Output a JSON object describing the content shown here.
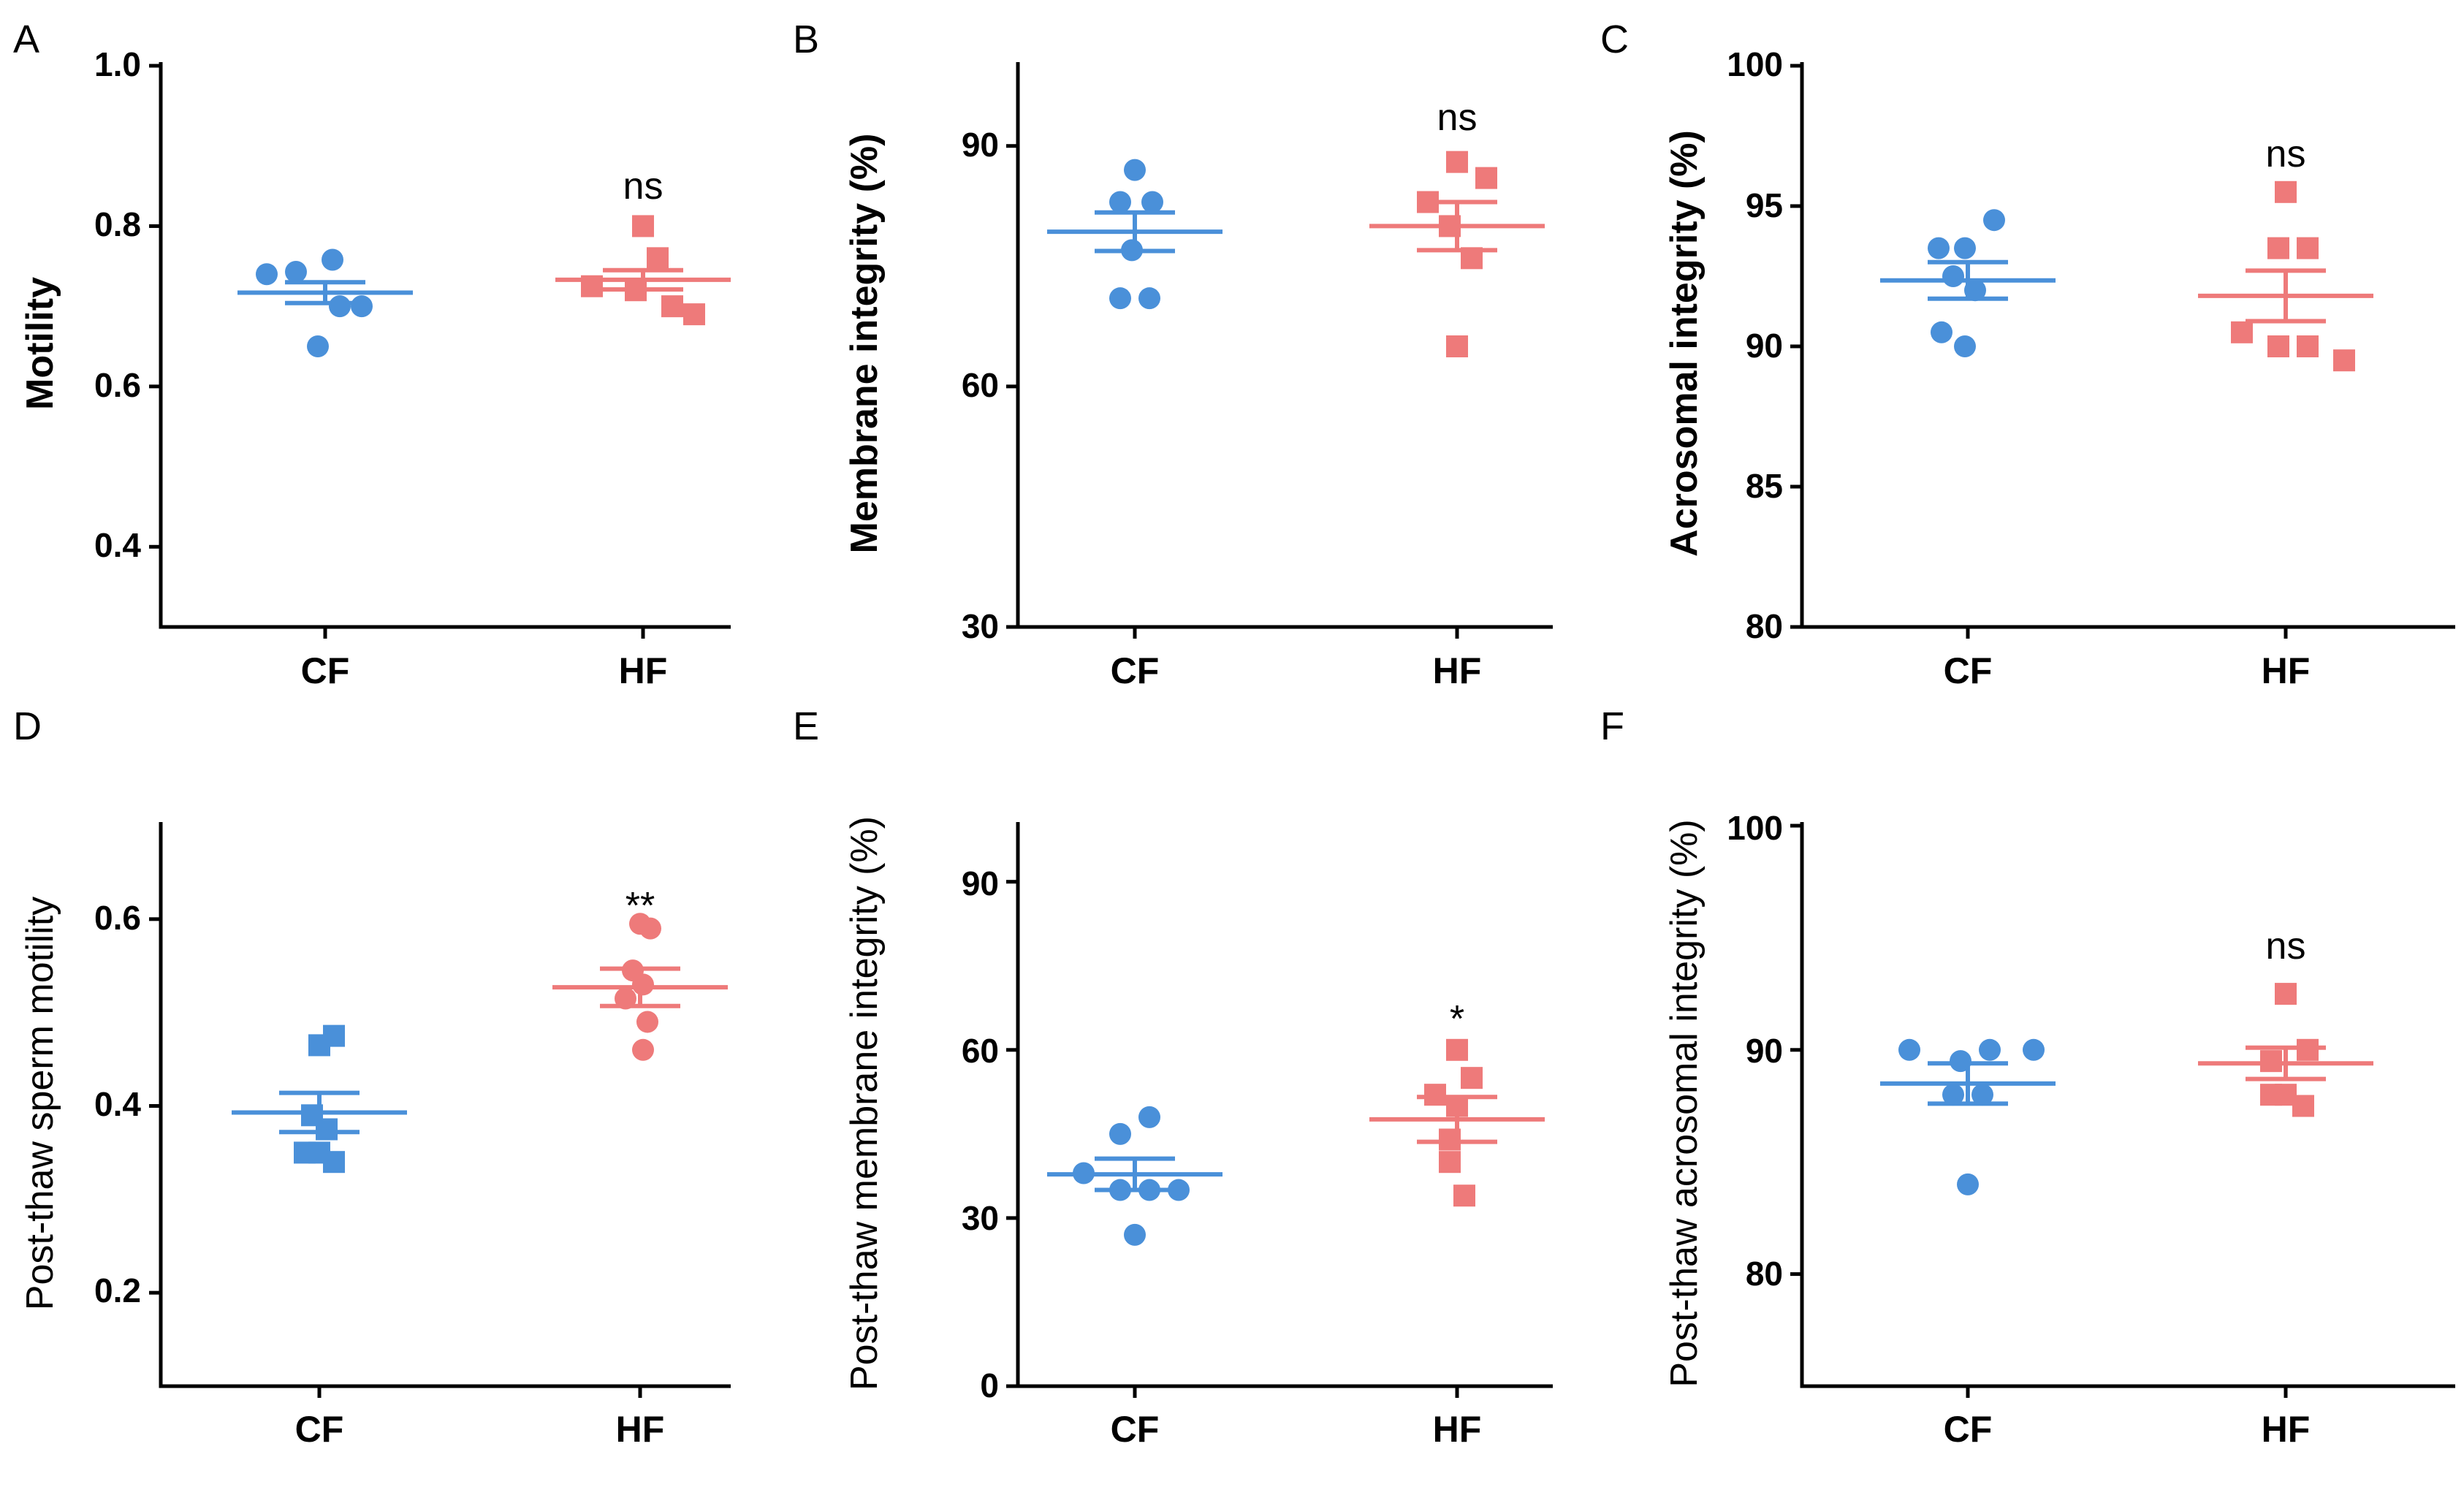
{
  "colors": {
    "CF": "#4a90d9",
    "HF": "#ee7a7a",
    "axis": "#000000"
  },
  "chart_data": [
    {
      "panel": "A",
      "type": "scatter",
      "ylabel": "Motility",
      "ylabel_weight": "bold",
      "categories": [
        "CF",
        "HF"
      ],
      "ylim": [
        0.3,
        1.0
      ],
      "yticks": [
        0.4,
        0.6,
        0.8,
        1.0
      ],
      "ytick_labels": [
        "0.4",
        "0.6",
        "0.8",
        "1.0"
      ],
      "significance": "ns",
      "series": [
        {
          "name": "CF",
          "marker": "circle",
          "mean": 0.717,
          "sem": 0.013,
          "points": [
            {
              "dx": -0.4,
              "y": 0.74
            },
            {
              "dx": -0.2,
              "y": 0.743
            },
            {
              "dx": 0.05,
              "y": 0.758
            },
            {
              "dx": 0.25,
              "y": 0.7
            },
            {
              "dx": -0.05,
              "y": 0.65
            },
            {
              "dx": 0.1,
              "y": 0.7
            }
          ]
        },
        {
          "name": "HF",
          "marker": "square",
          "mean": 0.733,
          "sem": 0.012,
          "points": [
            {
              "dx": -0.35,
              "y": 0.725
            },
            {
              "dx": -0.05,
              "y": 0.72
            },
            {
              "dx": 0.0,
              "y": 0.8
            },
            {
              "dx": 0.1,
              "y": 0.76
            },
            {
              "dx": 0.2,
              "y": 0.7
            },
            {
              "dx": 0.35,
              "y": 0.69
            }
          ]
        }
      ]
    },
    {
      "panel": "B",
      "type": "scatter",
      "ylabel": "Membrane integrity (%)",
      "ylabel_weight": "bold",
      "categories": [
        "CF",
        "HF"
      ],
      "ylim": [
        30,
        100
      ],
      "yticks": [
        30,
        60,
        90
      ],
      "ytick_labels": [
        "30",
        "60",
        "90"
      ],
      "significance": "ns",
      "series": [
        {
          "name": "CF",
          "marker": "circle",
          "mean": 79.3,
          "sem": 2.4,
          "points": [
            {
              "dx": 0.0,
              "y": 87
            },
            {
              "dx": -0.1,
              "y": 83
            },
            {
              "dx": 0.12,
              "y": 83
            },
            {
              "dx": -0.02,
              "y": 77
            },
            {
              "dx": -0.1,
              "y": 71
            },
            {
              "dx": 0.1,
              "y": 71
            }
          ]
        },
        {
          "name": "HF",
          "marker": "square",
          "mean": 80.0,
          "sem": 3.0,
          "points": [
            {
              "dx": 0.0,
              "y": 88
            },
            {
              "dx": 0.2,
              "y": 86
            },
            {
              "dx": -0.2,
              "y": 83
            },
            {
              "dx": -0.05,
              "y": 80
            },
            {
              "dx": 0.1,
              "y": 76
            },
            {
              "dx": 0.0,
              "y": 65
            }
          ]
        }
      ]
    },
    {
      "panel": "C",
      "type": "scatter",
      "ylabel": "Acrosomal integrity (%)",
      "ylabel_weight": "bold",
      "categories": [
        "CF",
        "HF"
      ],
      "ylim": [
        80,
        100
      ],
      "yticks": [
        80,
        85,
        90,
        95,
        100
      ],
      "ytick_labels": [
        "80",
        "85",
        "90",
        "95",
        "100"
      ],
      "significance": "ns",
      "series": [
        {
          "name": "CF",
          "marker": "circle",
          "mean": 92.35,
          "sem": 0.65,
          "points": [
            {
              "dx": -0.2,
              "y": 93.5
            },
            {
              "dx": -0.02,
              "y": 93.5
            },
            {
              "dx": 0.18,
              "y": 94.5
            },
            {
              "dx": 0.05,
              "y": 92.0
            },
            {
              "dx": -0.1,
              "y": 92.5
            },
            {
              "dx": -0.18,
              "y": 90.5
            },
            {
              "dx": -0.02,
              "y": 90.0
            }
          ]
        },
        {
          "name": "HF",
          "marker": "square",
          "mean": 91.8,
          "sem": 0.9,
          "points": [
            {
              "dx": 0.0,
              "y": 95.5
            },
            {
              "dx": -0.3,
              "y": 90.5
            },
            {
              "dx": -0.05,
              "y": 93.5
            },
            {
              "dx": 0.15,
              "y": 93.5
            },
            {
              "dx": -0.05,
              "y": 90.0
            },
            {
              "dx": 0.15,
              "y": 90.0
            },
            {
              "dx": 0.4,
              "y": 89.5
            }
          ]
        }
      ]
    },
    {
      "panel": "D",
      "type": "scatter",
      "ylabel": "Post-thaw sperm motility",
      "ylabel_weight": "normal",
      "categories": [
        "CF",
        "HF"
      ],
      "ylim": [
        0.1,
        0.7
      ],
      "yticks": [
        0.2,
        0.4,
        0.6
      ],
      "ytick_labels": [
        "0.2",
        "0.4",
        "0.6"
      ],
      "significance": "**",
      "series": [
        {
          "name": "CF",
          "marker": "square",
          "mean": 0.393,
          "sem": 0.021,
          "points": [
            {
              "dx": 0.0,
              "y": 0.465
            },
            {
              "dx": 0.1,
              "y": 0.475
            },
            {
              "dx": -0.05,
              "y": 0.39
            },
            {
              "dx": 0.05,
              "y": 0.375
            },
            {
              "dx": -0.1,
              "y": 0.35
            },
            {
              "dx": 0.0,
              "y": 0.35
            },
            {
              "dx": 0.1,
              "y": 0.34
            }
          ]
        },
        {
          "name": "HF",
          "marker": "circle",
          "mean": 0.527,
          "sem": 0.02,
          "points": [
            {
              "dx": 0.0,
              "y": 0.595
            },
            {
              "dx": 0.07,
              "y": 0.59
            },
            {
              "dx": -0.05,
              "y": 0.545
            },
            {
              "dx": 0.02,
              "y": 0.53
            },
            {
              "dx": -0.1,
              "y": 0.515
            },
            {
              "dx": 0.05,
              "y": 0.49
            },
            {
              "dx": 0.02,
              "y": 0.46
            }
          ]
        }
      ]
    },
    {
      "panel": "E",
      "type": "scatter",
      "ylabel": "Post-thaw membrane integrity (%)",
      "ylabel_weight": "normal",
      "categories": [
        "CF",
        "HF"
      ],
      "ylim": [
        0,
        100
      ],
      "yticks": [
        0,
        30,
        60,
        90
      ],
      "ytick_labels": [
        "0",
        "30",
        "60",
        "90"
      ],
      "significance": "*",
      "series": [
        {
          "name": "CF",
          "marker": "circle",
          "mean": 37.8,
          "sem": 2.8,
          "points": [
            {
              "dx": -0.1,
              "y": 45
            },
            {
              "dx": 0.1,
              "y": 48
            },
            {
              "dx": -0.35,
              "y": 38
            },
            {
              "dx": -0.1,
              "y": 35
            },
            {
              "dx": 0.1,
              "y": 35
            },
            {
              "dx": 0.3,
              "y": 35
            },
            {
              "dx": 0.0,
              "y": 27
            }
          ]
        },
        {
          "name": "HF",
          "marker": "square",
          "mean": 47.6,
          "sem": 4.0,
          "points": [
            {
              "dx": 0.0,
              "y": 60
            },
            {
              "dx": 0.1,
              "y": 55
            },
            {
              "dx": -0.15,
              "y": 52
            },
            {
              "dx": 0.0,
              "y": 50
            },
            {
              "dx": -0.05,
              "y": 44
            },
            {
              "dx": -0.05,
              "y": 40
            },
            {
              "dx": 0.05,
              "y": 34
            }
          ]
        }
      ]
    },
    {
      "panel": "F",
      "type": "scatter",
      "ylabel": "Post-thaw acrosomal integrity (%)",
      "ylabel_weight": "normal",
      "categories": [
        "CF",
        "HF"
      ],
      "ylim": [
        75,
        100
      ],
      "yticks": [
        80,
        90,
        100
      ],
      "ytick_labels": [
        "80",
        "90",
        "100"
      ],
      "significance": "ns",
      "series": [
        {
          "name": "CF",
          "marker": "circle",
          "mean": 88.5,
          "sem": 0.9,
          "points": [
            {
              "dx": -0.4,
              "y": 90
            },
            {
              "dx": -0.05,
              "y": 89.5
            },
            {
              "dx": 0.15,
              "y": 90
            },
            {
              "dx": 0.45,
              "y": 90
            },
            {
              "dx": -0.1,
              "y": 88
            },
            {
              "dx": 0.1,
              "y": 88
            },
            {
              "dx": 0.0,
              "y": 84
            }
          ]
        },
        {
          "name": "HF",
          "marker": "square",
          "mean": 89.4,
          "sem": 0.7,
          "points": [
            {
              "dx": 0.0,
              "y": 92.5
            },
            {
              "dx": -0.1,
              "y": 89.5
            },
            {
              "dx": 0.15,
              "y": 90
            },
            {
              "dx": -0.1,
              "y": 88
            },
            {
              "dx": 0.0,
              "y": 88
            },
            {
              "dx": 0.12,
              "y": 87.5
            }
          ]
        }
      ]
    }
  ]
}
